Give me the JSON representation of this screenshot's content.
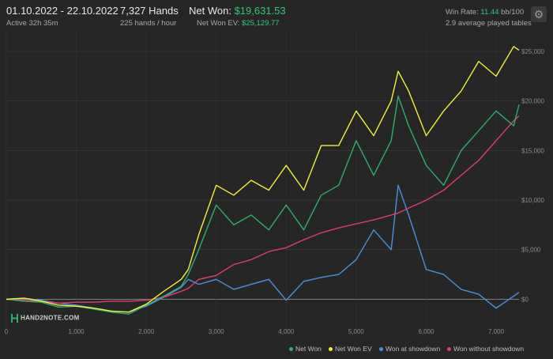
{
  "header": {
    "date_range": "01.10.2022 - 22.10.2022",
    "active": "Active 32h 35m",
    "hands": "7,327 Hands",
    "hands_per_hour": "225 hands / hour",
    "net_won_label": "Net Won:",
    "net_won_value": "$19,631.53",
    "net_won_ev_label": "Net Won  EV:",
    "net_won_ev_value": "$25,129.77",
    "win_rate_label": "Win Rate:",
    "win_rate_value": "11.44",
    "win_rate_unit": "bb/100",
    "tables": "2.9 average played tables"
  },
  "logo_text": "HAND2NOTE.COM",
  "icons": {
    "settings": "gear-icon"
  },
  "colors": {
    "net_won": "#2eae6a",
    "net_won_ev": "#f1f13c",
    "showdown": "#4a90e2",
    "non_showdown": "#e23d6d",
    "accent": "#2fc97a"
  },
  "chart_data": {
    "type": "line",
    "x_range": [
      0,
      7327
    ],
    "y_range": [
      -3000,
      27000
    ],
    "x_ticks": [
      "0",
      "1,000",
      "2,000",
      "3,000",
      "4,000",
      "5,000",
      "6,000",
      "7,000"
    ],
    "x_tick_values": [
      0,
      1000,
      2000,
      3000,
      4000,
      5000,
      6000,
      7000
    ],
    "y_ticks": [
      "$0",
      "$5,000",
      "$10,000",
      "$15,000",
      "$20,000",
      "$25,000"
    ],
    "y_tick_values": [
      0,
      5000,
      10000,
      15000,
      20000,
      25000
    ],
    "grid": true,
    "legend_position": "bottom-right",
    "x": [
      0,
      250,
      500,
      750,
      1000,
      1250,
      1500,
      1750,
      2000,
      2250,
      2500,
      2600,
      2750,
      3000,
      3250,
      3500,
      3750,
      4000,
      4250,
      4500,
      4750,
      5000,
      5250,
      5500,
      5600,
      5750,
      6000,
      6250,
      6500,
      6750,
      7000,
      7250,
      7327
    ],
    "series": [
      {
        "name": "Net Won",
        "values": [
          0,
          -200,
          -300,
          -800,
          -700,
          -1000,
          -1300,
          -1500,
          -600,
          300,
          1300,
          2500,
          5000,
          9500,
          7500,
          8500,
          7000,
          9500,
          7000,
          10500,
          11500,
          16000,
          12500,
          16000,
          20500,
          17500,
          13500,
          11500,
          15000,
          17000,
          19000,
          17500,
          19632
        ]
      },
      {
        "name": "Net Won  EV",
        "values": [
          0,
          100,
          -200,
          -600,
          -700,
          -900,
          -1200,
          -1300,
          -500,
          800,
          2000,
          3000,
          6500,
          11500,
          10500,
          12000,
          11000,
          13500,
          11000,
          15500,
          15500,
          19000,
          16500,
          20000,
          23000,
          21000,
          16500,
          19000,
          21000,
          24000,
          22500,
          25500,
          25130
        ]
      },
      {
        "name": "Won at showdown",
        "values": [
          0,
          100,
          -100,
          -400,
          -600,
          -900,
          -1200,
          -1300,
          -700,
          200,
          1200,
          2000,
          1500,
          2000,
          1000,
          1500,
          2000,
          -100,
          1800,
          2200,
          2500,
          4000,
          7000,
          5000,
          11500,
          8500,
          3000,
          2500,
          1000,
          500,
          -900,
          300,
          700
        ]
      },
      {
        "name": "Won without showdown",
        "values": [
          0,
          -100,
          -200,
          -400,
          -300,
          -300,
          -200,
          -200,
          -100,
          200,
          800,
          1100,
          2000,
          2400,
          3500,
          4000,
          4800,
          5200,
          6000,
          6700,
          7200,
          7600,
          8000,
          8500,
          8700,
          9200,
          10000,
          11000,
          12500,
          14000,
          16000,
          18000,
          18500
        ]
      }
    ]
  },
  "legend": [
    {
      "key": "net_won",
      "label": "Net Won"
    },
    {
      "key": "net_won_ev",
      "label": "Net Won  EV"
    },
    {
      "key": "showdown",
      "label": "Won at showdown"
    },
    {
      "key": "non_showdown",
      "label": "Won without showdown"
    }
  ]
}
